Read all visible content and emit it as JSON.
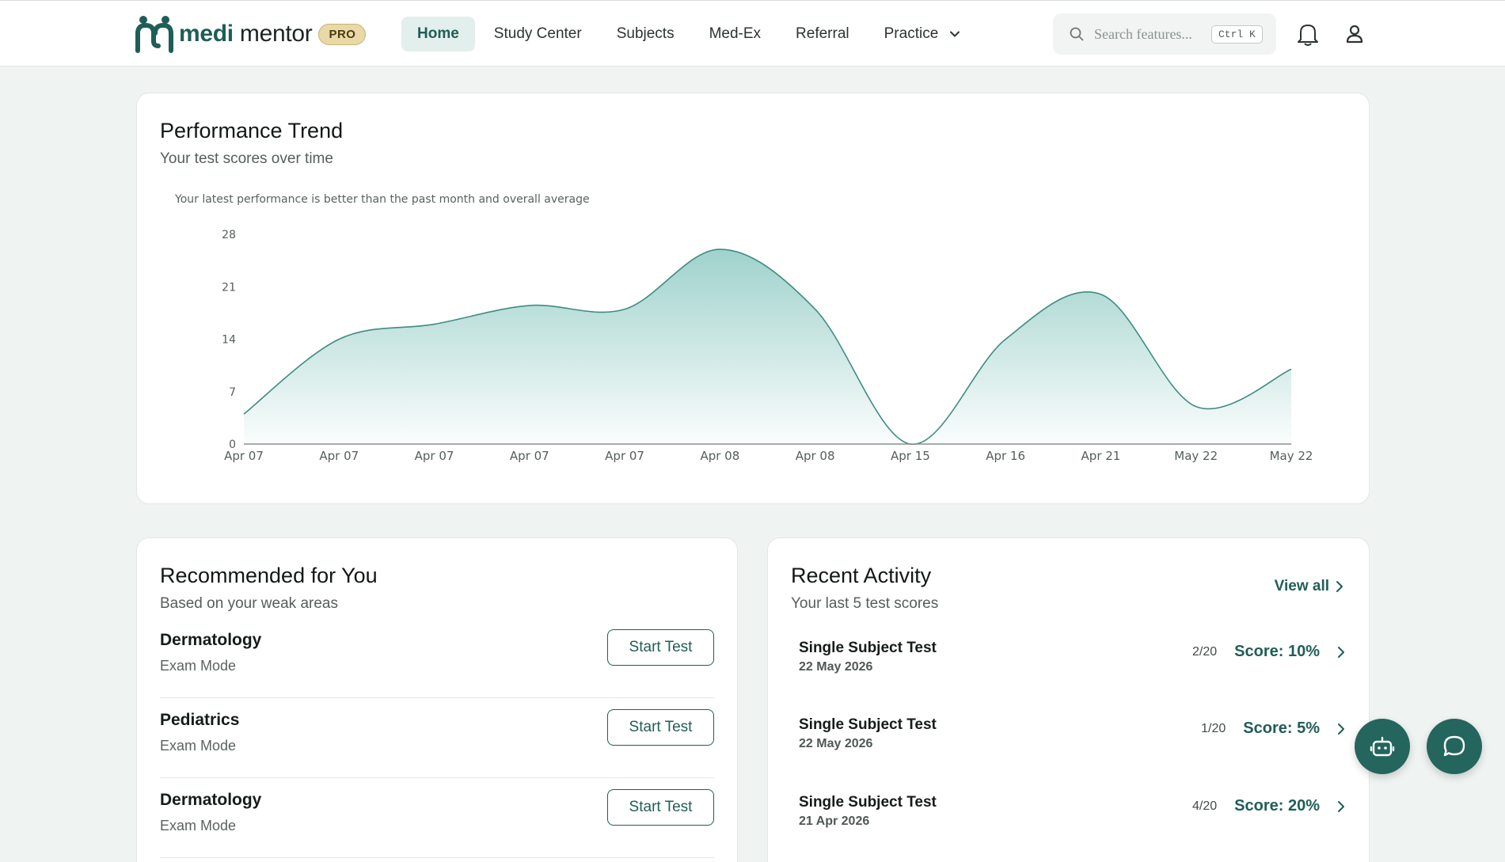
{
  "brand": {
    "name_bold": "medi",
    "name_rest": "mentor",
    "badge": "PRO",
    "color": "#1f5e57"
  },
  "nav": {
    "items": [
      {
        "label": "Home",
        "active": true
      },
      {
        "label": "Study Center"
      },
      {
        "label": "Subjects"
      },
      {
        "label": "Med-Ex"
      },
      {
        "label": "Referral"
      },
      {
        "label": "Practice",
        "dropdown": true
      }
    ]
  },
  "search": {
    "placeholder": "Search features...",
    "shortcut": "Ctrl K"
  },
  "icons": {
    "notifications": "bell-icon",
    "profile": "user-icon",
    "bot": "robot-icon",
    "chat": "chat-bubble-icon"
  },
  "performance": {
    "title": "Performance Trend",
    "subtitle": "Your test scores over time",
    "note": "Your latest performance is better than the past month and overall average"
  },
  "chart_data": {
    "type": "area",
    "categories": [
      "Apr 07",
      "Apr 07",
      "Apr 07",
      "Apr 07",
      "Apr 07",
      "Apr 08",
      "Apr 08",
      "Apr 15",
      "Apr 16",
      "Apr 21",
      "May 22",
      "May 22"
    ],
    "values": [
      4,
      14,
      16,
      18.5,
      18,
      26,
      18,
      0,
      14,
      20,
      5,
      10
    ],
    "ylim": [
      0,
      28
    ],
    "yticks": [
      0,
      7,
      14,
      21,
      28
    ],
    "title": "",
    "xlabel": "",
    "ylabel": "",
    "grid": false,
    "color": "#3f8c84"
  },
  "recommended": {
    "title": "Recommended for You",
    "subtitle": "Based on your weak areas",
    "button_label": "Start Test",
    "items": [
      {
        "subject": "Dermatology",
        "mode": "Exam Mode"
      },
      {
        "subject": "Pediatrics",
        "mode": "Exam Mode"
      },
      {
        "subject": "Dermatology",
        "mode": "Exam Mode"
      }
    ]
  },
  "activity": {
    "title": "Recent Activity",
    "subtitle": "Your last 5 test scores",
    "view_all": "View all",
    "items": [
      {
        "name": "Single Subject Test",
        "date": "22 May 2026",
        "count": "2/20",
        "score": "Score: 10%"
      },
      {
        "name": "Single Subject Test",
        "date": "22 May 2026",
        "count": "1/20",
        "score": "Score: 5%"
      },
      {
        "name": "Single Subject Test",
        "date": "21 Apr 2026",
        "count": "4/20",
        "score": "Score: 20%"
      }
    ]
  }
}
